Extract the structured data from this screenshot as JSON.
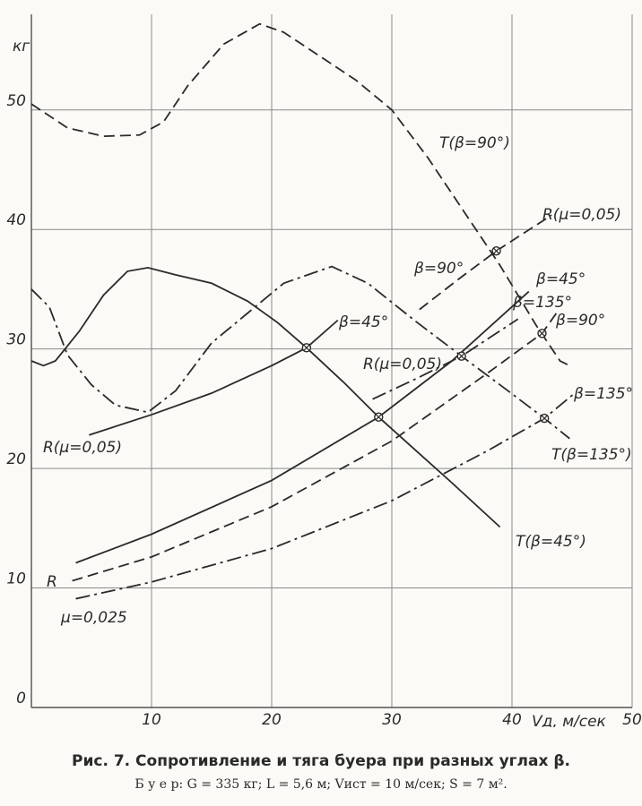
{
  "chart_data": {
    "type": "line",
    "title": "Рис. 7. Сопротивление и тяга буера при разных углах β.",
    "subtitle": "Б у е р:  G = 335 кг;  L = 5,6 м;  Vист = 10 м/сек;  S = 7 м².",
    "xlabel": "Vд, м/сек",
    "ylabel": "кг",
    "xlim": [
      0,
      50
    ],
    "ylim": [
      0,
      58
    ],
    "xticks": [
      10,
      20,
      30,
      40,
      50
    ],
    "yticks": [
      0,
      10,
      20,
      30,
      40,
      50
    ],
    "grid": true,
    "color": "#2a2a2a",
    "series": [
      {
        "dash": "dashed",
        "x": [
          0,
          3,
          6,
          9,
          11,
          13,
          16,
          19,
          21,
          24,
          27,
          30,
          33,
          36,
          39,
          42,
          44,
          45
        ],
        "values": [
          50.5,
          48.5,
          47.8,
          47.9,
          49,
          52,
          55.5,
          57.2,
          56.5,
          54.5,
          52.5,
          50,
          46,
          41.5,
          37,
          32,
          29,
          28.5
        ]
      },
      {
        "dash": "dashdot",
        "x": [
          0,
          1.5,
          3,
          5,
          7,
          9.7,
          12,
          15,
          18,
          21,
          25,
          28,
          32,
          35.8,
          39,
          42.7,
          44.8
        ],
        "values": [
          35,
          33.5,
          29.5,
          27,
          25.3,
          24.7,
          26.5,
          30.5,
          33,
          35.5,
          36.9,
          35.5,
          32.3,
          29.4,
          27,
          24.2,
          22.5
        ]
      },
      {
        "dash": "solid",
        "x": [
          0,
          1,
          2,
          4,
          6,
          8,
          9.7,
          12,
          15,
          18,
          20.5,
          22.9,
          26,
          28.9,
          32,
          35,
          39
        ],
        "values": [
          29,
          28.6,
          29,
          31.5,
          34.5,
          36.5,
          36.8,
          36.2,
          35.5,
          34,
          32.2,
          30.1,
          27.2,
          24.3,
          21.5,
          18.8,
          15.1
        ]
      },
      {
        "dash": "solid",
        "x": [
          4.8,
          10,
          15,
          20,
          22.9,
          25.5
        ],
        "values": [
          22.8,
          24.5,
          26.3,
          28.6,
          30.1,
          32.4
        ]
      },
      {
        "dash": "dashdot",
        "x": [
          28.4,
          32,
          35.8,
          40.5
        ],
        "values": [
          25.8,
          27.5,
          29.4,
          32.5
        ]
      },
      {
        "dash": "dashed",
        "x": [
          32.3,
          35.5,
          38.7,
          43.3
        ],
        "values": [
          33.3,
          35.8,
          38.2,
          41.2
        ]
      },
      {
        "dash": "solid",
        "x": [
          3.7,
          10,
          20,
          28.9,
          35,
          41.4
        ],
        "values": [
          12.1,
          14.5,
          19,
          24.3,
          29,
          34.8
        ]
      },
      {
        "dash": "dashed",
        "x": [
          3.4,
          10,
          20,
          30,
          38,
          42.5,
          43.7
        ],
        "values": [
          10.6,
          12.6,
          16.8,
          22.3,
          28,
          31.3,
          33
        ]
      },
      {
        "dash": "dashdot",
        "x": [
          3.7,
          10,
          20,
          30,
          38,
          42.7,
          45.1
        ],
        "values": [
          9.1,
          10.5,
          13.3,
          17.3,
          21.5,
          24.2,
          26.2
        ]
      }
    ],
    "intersections": {
      "x": [
        22.9,
        28.9,
        35.8,
        38.7,
        42.5,
        42.7
      ],
      "y": [
        30.1,
        24.3,
        29.4,
        38.2,
        31.3,
        24.2
      ]
    },
    "annotations": [
      "T(β=90°)",
      "R(μ=0,05)",
      "β=90°",
      "β=45°",
      "β=45°",
      "β=135°",
      "β=90°",
      "R(μ=0,05)",
      "β=135°",
      "R(μ=0,05)",
      "T(β=135°)",
      "T(β=45°)",
      "R",
      "μ=0,025"
    ]
  }
}
